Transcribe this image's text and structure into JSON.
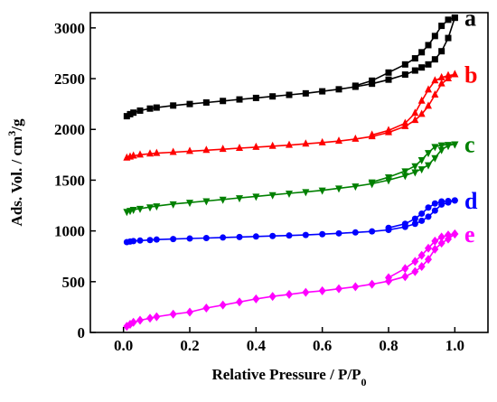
{
  "chart_data": {
    "type": "line",
    "title": "",
    "xlabel": "Relative Pressure  / P/P",
    "xlabel_subscript": "0",
    "ylabel": "Ads. Vol. / cm",
    "ylabel_superscript": "3",
    "ylabel_suffix": "/g",
    "xlim": [
      -0.1,
      1.1
    ],
    "ylim": [
      0,
      3150
    ],
    "xticks": [
      0.0,
      0.2,
      0.4,
      0.6,
      0.8,
      1.0
    ],
    "xtick_labels": [
      "0.0",
      "0.2",
      "0.4",
      "0.6",
      "0.8",
      "1.0"
    ],
    "yticks": [
      0,
      500,
      1000,
      1500,
      2000,
      2500,
      3000
    ],
    "ytick_labels": [
      "0",
      "500",
      "1000",
      "1500",
      "2000",
      "2500",
      "3000"
    ],
    "grid": false,
    "legend": "right-end labels",
    "series": [
      {
        "name": "a",
        "color": "#000000",
        "marker": "square",
        "adsorption": {
          "x": [
            0.01,
            0.02,
            0.03,
            0.05,
            0.08,
            0.1,
            0.15,
            0.2,
            0.25,
            0.3,
            0.35,
            0.4,
            0.45,
            0.5,
            0.55,
            0.6,
            0.65,
            0.7,
            0.75,
            0.8,
            0.85,
            0.88,
            0.9,
            0.92,
            0.94,
            0.96,
            0.98,
            1.0
          ],
          "y": [
            2130,
            2150,
            2165,
            2185,
            2205,
            2215,
            2235,
            2250,
            2265,
            2280,
            2295,
            2310,
            2325,
            2340,
            2355,
            2375,
            2395,
            2420,
            2450,
            2490,
            2540,
            2580,
            2610,
            2640,
            2690,
            2770,
            2900,
            3100
          ]
        },
        "desorption": {
          "x": [
            1.0,
            0.98,
            0.96,
            0.94,
            0.92,
            0.9,
            0.88,
            0.85,
            0.8,
            0.75,
            0.7
          ],
          "y": [
            3100,
            3080,
            3020,
            2920,
            2830,
            2760,
            2700,
            2640,
            2560,
            2480,
            2430
          ]
        }
      },
      {
        "name": "b",
        "color": "#ff0000",
        "marker": "triangle-up",
        "adsorption": {
          "x": [
            0.01,
            0.02,
            0.03,
            0.05,
            0.08,
            0.1,
            0.15,
            0.2,
            0.25,
            0.3,
            0.35,
            0.4,
            0.45,
            0.5,
            0.55,
            0.6,
            0.65,
            0.7,
            0.75,
            0.8,
            0.85,
            0.88,
            0.9,
            0.92,
            0.94,
            0.96,
            0.98,
            1.0
          ],
          "y": [
            1720,
            1730,
            1740,
            1750,
            1760,
            1765,
            1775,
            1785,
            1795,
            1805,
            1815,
            1825,
            1835,
            1845,
            1858,
            1870,
            1885,
            1905,
            1930,
            1970,
            2030,
            2090,
            2150,
            2230,
            2340,
            2450,
            2500,
            2540
          ]
        },
        "desorption": {
          "x": [
            1.0,
            0.98,
            0.96,
            0.94,
            0.92,
            0.9,
            0.88,
            0.85,
            0.8,
            0.75
          ],
          "y": [
            2540,
            2530,
            2510,
            2480,
            2390,
            2280,
            2160,
            2060,
            1990,
            1945
          ]
        }
      },
      {
        "name": "c",
        "color": "#008000",
        "marker": "triangle-down",
        "adsorption": {
          "x": [
            0.01,
            0.02,
            0.03,
            0.05,
            0.08,
            0.1,
            0.15,
            0.2,
            0.25,
            0.3,
            0.35,
            0.4,
            0.45,
            0.5,
            0.55,
            0.6,
            0.65,
            0.7,
            0.75,
            0.8,
            0.85,
            0.88,
            0.9,
            0.92,
            0.94,
            0.96,
            0.98,
            1.0
          ],
          "y": [
            1190,
            1200,
            1210,
            1220,
            1235,
            1245,
            1265,
            1280,
            1295,
            1310,
            1325,
            1340,
            1355,
            1370,
            1385,
            1400,
            1420,
            1440,
            1465,
            1500,
            1545,
            1580,
            1610,
            1650,
            1720,
            1800,
            1840,
            1855
          ]
        },
        "desorption": {
          "x": [
            1.0,
            0.98,
            0.96,
            0.94,
            0.92,
            0.9,
            0.88,
            0.85,
            0.8,
            0.75
          ],
          "y": [
            1855,
            1850,
            1845,
            1830,
            1770,
            1700,
            1640,
            1590,
            1530,
            1480
          ]
        }
      },
      {
        "name": "d",
        "color": "#0000ff",
        "marker": "circle",
        "adsorption": {
          "x": [
            0.01,
            0.02,
            0.03,
            0.05,
            0.08,
            0.1,
            0.15,
            0.2,
            0.25,
            0.3,
            0.35,
            0.4,
            0.45,
            0.5,
            0.55,
            0.6,
            0.65,
            0.7,
            0.75,
            0.8,
            0.85,
            0.88,
            0.9,
            0.92,
            0.94,
            0.96,
            0.98,
            1.0
          ],
          "y": [
            890,
            895,
            900,
            905,
            910,
            915,
            920,
            925,
            930,
            935,
            940,
            945,
            950,
            955,
            960,
            968,
            976,
            985,
            995,
            1010,
            1040,
            1070,
            1100,
            1140,
            1200,
            1260,
            1280,
            1300
          ]
        },
        "desorption": {
          "x": [
            1.0,
            0.98,
            0.96,
            0.94,
            0.92,
            0.9,
            0.88,
            0.85,
            0.8
          ],
          "y": [
            1300,
            1295,
            1290,
            1270,
            1230,
            1170,
            1120,
            1070,
            1030
          ]
        }
      },
      {
        "name": "e",
        "color": "#ff00ff",
        "marker": "diamond",
        "adsorption": {
          "x": [
            0.01,
            0.02,
            0.03,
            0.05,
            0.08,
            0.1,
            0.15,
            0.2,
            0.25,
            0.3,
            0.35,
            0.4,
            0.45,
            0.5,
            0.55,
            0.6,
            0.65,
            0.7,
            0.75,
            0.8,
            0.85,
            0.88,
            0.9,
            0.92,
            0.94,
            0.96,
            0.98,
            1.0
          ],
          "y": [
            60,
            80,
            100,
            120,
            140,
            155,
            180,
            200,
            240,
            270,
            300,
            330,
            355,
            375,
            395,
            410,
            430,
            450,
            475,
            505,
            550,
            600,
            650,
            720,
            820,
            880,
            920,
            970
          ]
        },
        "desorption": {
          "x": [
            1.0,
            0.98,
            0.96,
            0.94,
            0.92,
            0.9,
            0.88,
            0.85,
            0.8
          ],
          "y": [
            970,
            960,
            940,
            900,
            830,
            760,
            700,
            630,
            540
          ]
        }
      }
    ]
  }
}
